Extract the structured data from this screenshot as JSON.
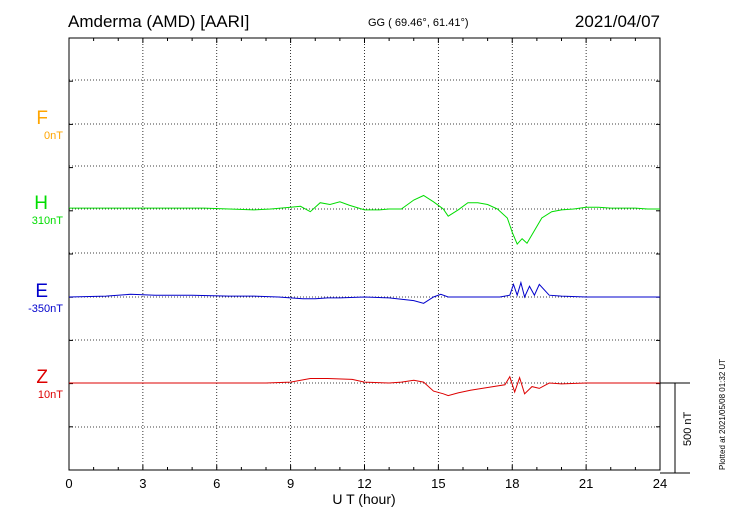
{
  "header": {
    "station": "Amderma (AMD)  [AARI]",
    "coords": "GG ( 69.46°,  61.41°)",
    "date": "2021/04/07"
  },
  "components": [
    {
      "key": "F",
      "label": "F",
      "baseline": "0nT",
      "color": "#ffa500"
    },
    {
      "key": "H",
      "label": "H",
      "baseline": "310nT",
      "color": "#00dd00"
    },
    {
      "key": "E",
      "label": "E",
      "baseline": "-350nT",
      "color": "#0000cc"
    },
    {
      "key": "Z",
      "label": "Z",
      "baseline": "10nT",
      "color": "#dd0000"
    }
  ],
  "scale_bar": {
    "label": "500 nT",
    "value_nT": 500
  },
  "plotted_note": "Plotted at 2021/05/08 01:32 UT",
  "chart_data": {
    "type": "line",
    "title": "Amderma (AMD)  [AARI]",
    "xlabel": "U T (hour)",
    "xlim": [
      0,
      24
    ],
    "x_ticks": [
      "0",
      "3",
      "6",
      "9",
      "12",
      "15",
      "18",
      "21",
      "24"
    ],
    "grid": true,
    "series": [
      {
        "name": "F",
        "baseline": "0nT",
        "x": [],
        "y": []
      },
      {
        "name": "H",
        "baseline": "310nT",
        "x": [
          0,
          1.5,
          3,
          4.5,
          5.5,
          6.5,
          7.5,
          8.2,
          9,
          9.4,
          9.8,
          10.2,
          10.6,
          11,
          11.4,
          12,
          12.6,
          13,
          13.5,
          14,
          14.4,
          14.8,
          15.2,
          15.4,
          15.8,
          16.2,
          16.6,
          17,
          17.4,
          17.8,
          18.0,
          18.2,
          18.4,
          18.6,
          18.9,
          19.2,
          19.6,
          20,
          20.5,
          21,
          21.5,
          22,
          22.5,
          23,
          23.5,
          24
        ],
        "y": [
          5,
          5,
          5,
          5,
          5,
          0,
          -5,
          0,
          10,
          15,
          -15,
          35,
          25,
          40,
          20,
          -5,
          -5,
          0,
          0,
          50,
          75,
          40,
          0,
          -40,
          -5,
          35,
          35,
          25,
          0,
          -50,
          -130,
          -195,
          -165,
          -190,
          -120,
          -50,
          -15,
          -5,
          0,
          10,
          10,
          5,
          5,
          5,
          0,
          0
        ]
      },
      {
        "name": "E",
        "baseline": "-350nT",
        "x": [
          0,
          1.5,
          2.5,
          3.5,
          5,
          6.5,
          7.5,
          8.5,
          9,
          9.5,
          10,
          10.5,
          11,
          12,
          13,
          14,
          14.4,
          14.8,
          15.1,
          15.4,
          15.8,
          16.5,
          17.5,
          17.9,
          18.05,
          18.2,
          18.35,
          18.5,
          18.7,
          18.9,
          19.1,
          19.5,
          20,
          21,
          22,
          23,
          24
        ],
        "y": [
          0,
          5,
          15,
          10,
          10,
          5,
          5,
          0,
          -5,
          -10,
          -10,
          -5,
          -5,
          0,
          -5,
          -20,
          -35,
          0,
          15,
          0,
          0,
          0,
          0,
          10,
          70,
          10,
          80,
          0,
          60,
          10,
          70,
          10,
          5,
          0,
          0,
          0,
          0
        ]
      },
      {
        "name": "Z",
        "baseline": "10nT",
        "x": [
          0,
          2,
          4,
          6,
          8,
          9,
          9.8,
          10.5,
          11.5,
          12,
          13,
          13.5,
          14,
          14.4,
          14.8,
          15.2,
          15.4,
          15.8,
          16.3,
          17,
          17.7,
          17.9,
          18.1,
          18.3,
          18.5,
          18.8,
          19.1,
          19.5,
          20,
          21,
          22,
          23,
          24
        ],
        "y": [
          0,
          0,
          0,
          0,
          0,
          5,
          25,
          25,
          20,
          5,
          0,
          5,
          15,
          5,
          -45,
          -60,
          -70,
          -55,
          -40,
          -25,
          -10,
          35,
          -50,
          30,
          -60,
          -20,
          -30,
          0,
          -5,
          0,
          0,
          0,
          0
        ]
      }
    ]
  }
}
